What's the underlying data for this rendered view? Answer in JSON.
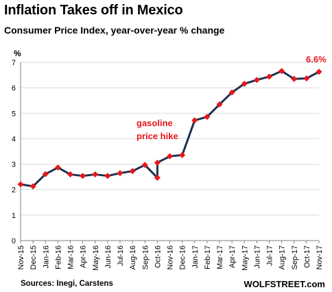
{
  "title": "Inflation Takes off in Mexico",
  "subtitle": "Consumer Price Index, year-over-year % change",
  "sources": "Sources: Inegi, Carstens",
  "brand": "WOLFSTREET.com",
  "colors": {
    "line": "#1f2f4f",
    "marker": "#e8161b",
    "annotation": "#e8161b",
    "grid": "#d9d9d9"
  },
  "chart_data": {
    "type": "line",
    "ylabel": "%",
    "ylim": [
      0,
      7
    ],
    "yticks": [
      0,
      1,
      2,
      3,
      4,
      5,
      6,
      7
    ],
    "grid": true,
    "categories": [
      "Nov-15",
      "Dec-15",
      "Jan-16",
      "Feb-16",
      "Mar-16",
      "Apr-16",
      "May-16",
      "Jun-16",
      "Jul-16",
      "Aug-16",
      "Sep-16",
      "Oct-16",
      "Nov-16",
      "Dec-16",
      "Jan-17",
      "Feb-17",
      "Mar-17",
      "Apr-17",
      "May-17",
      "Jun-17",
      "Jul-17",
      "Aug-17",
      "Sep-17",
      "Oct-17",
      "Nov-17"
    ],
    "series": [
      {
        "points": [
          {
            "x": 0,
            "y": 2.21
          },
          {
            "x": 1,
            "y": 2.13
          },
          {
            "x": 2,
            "y": 2.61
          },
          {
            "x": 3,
            "y": 2.87
          },
          {
            "x": 4,
            "y": 2.6
          },
          {
            "x": 5,
            "y": 2.54
          },
          {
            "x": 6,
            "y": 2.6
          },
          {
            "x": 7,
            "y": 2.54
          },
          {
            "x": 8,
            "y": 2.65
          },
          {
            "x": 9,
            "y": 2.73
          },
          {
            "x": 10,
            "y": 2.97
          },
          {
            "x": 11,
            "y": 2.47
          },
          {
            "x": 11,
            "y": 3.06
          },
          {
            "x": 12,
            "y": 3.31
          },
          {
            "x": 13,
            "y": 3.36
          },
          {
            "x": 14,
            "y": 4.72
          },
          {
            "x": 15,
            "y": 4.86
          },
          {
            "x": 16,
            "y": 5.35
          },
          {
            "x": 17,
            "y": 5.82
          },
          {
            "x": 18,
            "y": 6.16
          },
          {
            "x": 19,
            "y": 6.31
          },
          {
            "x": 20,
            "y": 6.44
          },
          {
            "x": 21,
            "y": 6.66
          },
          {
            "x": 22,
            "y": 6.35
          },
          {
            "x": 23,
            "y": 6.37
          },
          {
            "x": 24,
            "y": 6.63
          }
        ]
      }
    ],
    "annotations": [
      {
        "text_lines": [
          "gasoline",
          "price hike"
        ]
      },
      {
        "text": "6.6%"
      }
    ]
  }
}
